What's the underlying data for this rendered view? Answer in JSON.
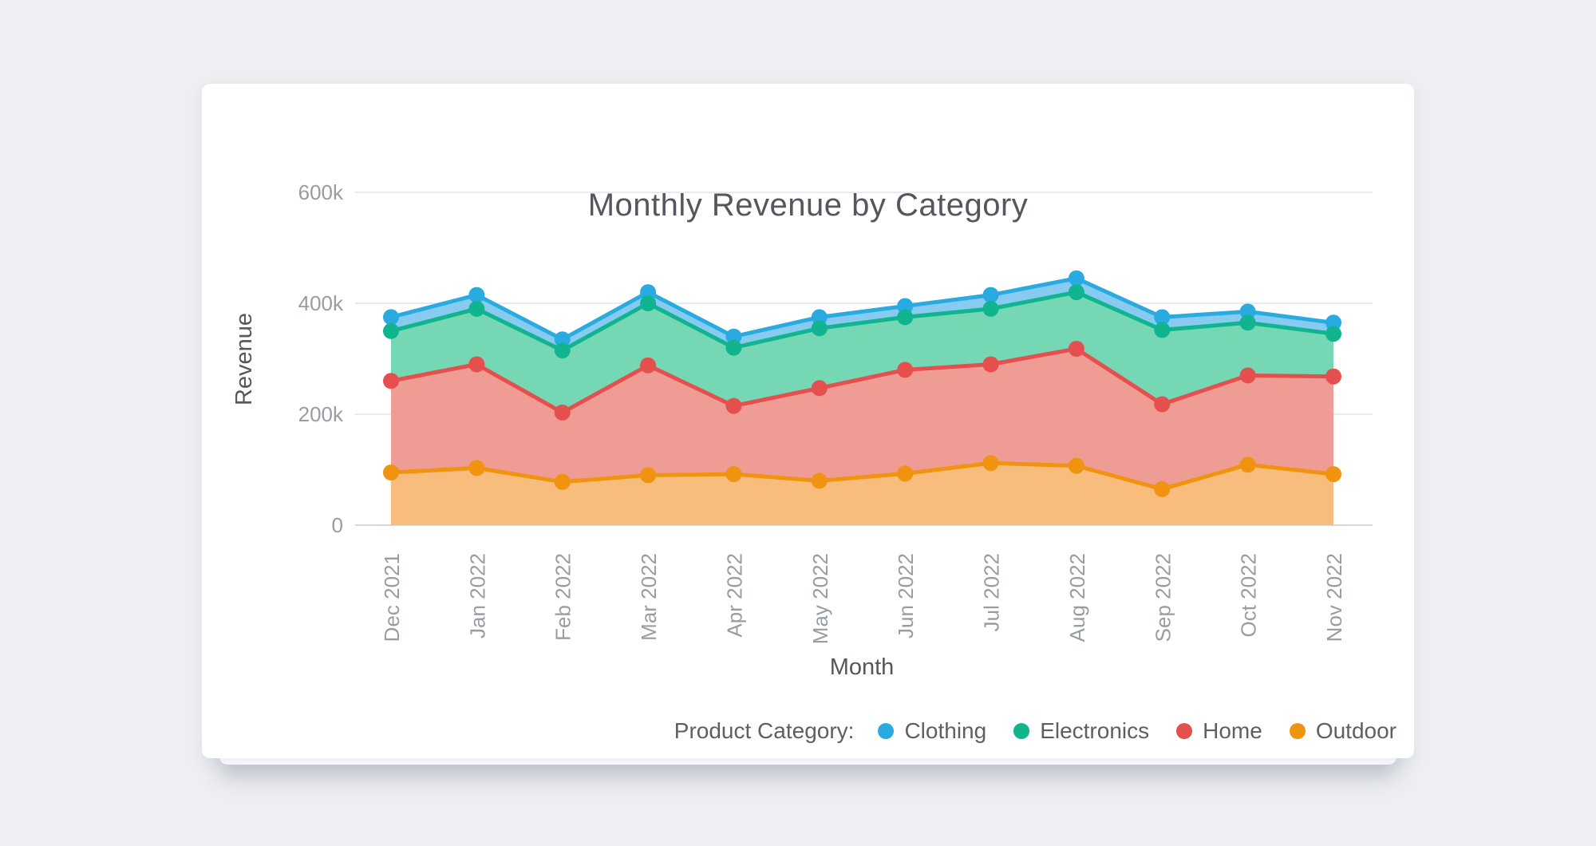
{
  "page": {
    "background_color": "#edeff2",
    "card_color": "#ffffff"
  },
  "chart_data": {
    "type": "area",
    "title": "Monthly Revenue by Category",
    "xlabel": "Month",
    "ylabel": "Revenue",
    "x": [
      "Dec 2021",
      "Jan 2022",
      "Feb 2022",
      "Mar 2022",
      "Apr 2022",
      "May 2022",
      "Jun 2022",
      "Jul 2022",
      "Aug 2022",
      "Sep 2022",
      "Oct 2022",
      "Nov 2022"
    ],
    "ylim": [
      0,
      600000
    ],
    "grid": true,
    "y_ticks": [
      {
        "value": 0,
        "label": "0"
      },
      {
        "value": 200000,
        "label": "200k"
      },
      {
        "value": 400000,
        "label": "400k"
      },
      {
        "value": 600000,
        "label": "600k"
      }
    ],
    "legend_title": "Product Category:",
    "legend_position": "bottom-right",
    "series": [
      {
        "name": "Clothing",
        "color": "#29abe2",
        "fill": "#87cbf0",
        "values": [
          375000,
          415000,
          335000,
          420000,
          340000,
          375000,
          395000,
          415000,
          445000,
          375000,
          385000,
          365000
        ]
      },
      {
        "name": "Electronics",
        "color": "#10b48f",
        "fill": "#76d7b4",
        "values": [
          350000,
          390000,
          315000,
          400000,
          320000,
          355000,
          375000,
          390000,
          420000,
          352000,
          365000,
          345000
        ]
      },
      {
        "name": "Home",
        "color": "#e5504f",
        "fill": "#ef9c95",
        "values": [
          260000,
          290000,
          203000,
          288000,
          215000,
          247000,
          280000,
          290000,
          318000,
          218000,
          270000,
          268000
        ]
      },
      {
        "name": "Outdoor",
        "color": "#f0930f",
        "fill": "#f8bd7d",
        "values": [
          95000,
          103000,
          78000,
          90000,
          92000,
          80000,
          93000,
          112000,
          107000,
          65000,
          109000,
          92000
        ]
      }
    ],
    "style": {
      "gridline_color": "#e9eaec",
      "axisline_color": "#d6d8db",
      "tick_label_color": "#989ca3",
      "axis_title_color": "#54575d",
      "legend_text_color": "#5c6066"
    }
  }
}
